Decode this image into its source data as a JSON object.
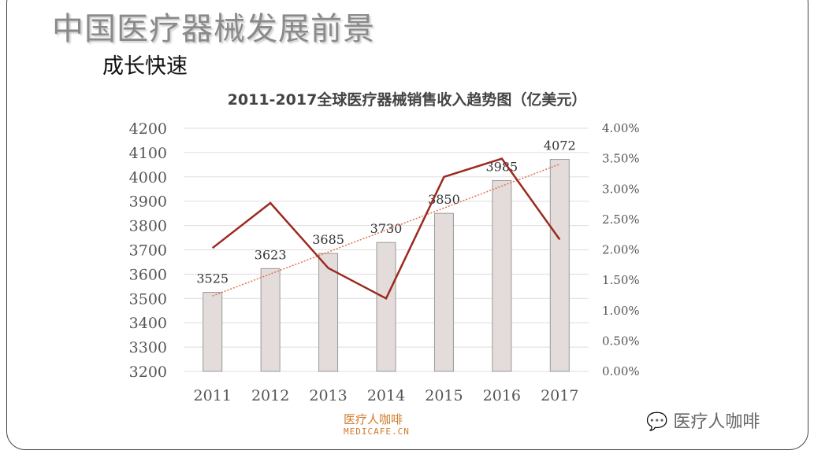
{
  "slide": {
    "title": "中国医疗器械发展前景",
    "subtitle": "成长快速"
  },
  "chart_data": {
    "type": "bar",
    "title": "2011-2017全球医疗器械销售收入趋势图（亿美元）",
    "categories": [
      "2011",
      "2012",
      "2013",
      "2014",
      "2015",
      "2016",
      "2017"
    ],
    "series": [
      {
        "type": "bar",
        "axis": "left",
        "values": [
          3525,
          3623,
          3685,
          3730,
          3850,
          3985,
          4072
        ],
        "color": "#e3dcda"
      },
      {
        "type": "line",
        "axis": "right",
        "values": [
          2.03,
          2.77,
          1.7,
          1.2,
          3.2,
          3.5,
          2.17
        ],
        "color": "#9b2a1f"
      },
      {
        "type": "trendline",
        "axis": "left",
        "style": "dotted",
        "color": "#e07050"
      }
    ],
    "ylim": [
      3200,
      4200
    ],
    "yticks": [
      "3200",
      "3300",
      "3400",
      "3500",
      "3600",
      "3700",
      "3800",
      "3900",
      "4000",
      "4100",
      "4200"
    ],
    "y2lim": [
      0,
      4
    ],
    "y2ticks": [
      "0.00%",
      "0.50%",
      "1.00%",
      "1.50%",
      "2.00%",
      "2.50%",
      "3.00%",
      "3.50%",
      "4.00%"
    ],
    "grid": true,
    "data_labels": true
  },
  "footer": {
    "logo_cn": "医疗人咖啡",
    "logo_en": "MEDICAFE.CN",
    "wechat": "医疗人咖啡"
  }
}
